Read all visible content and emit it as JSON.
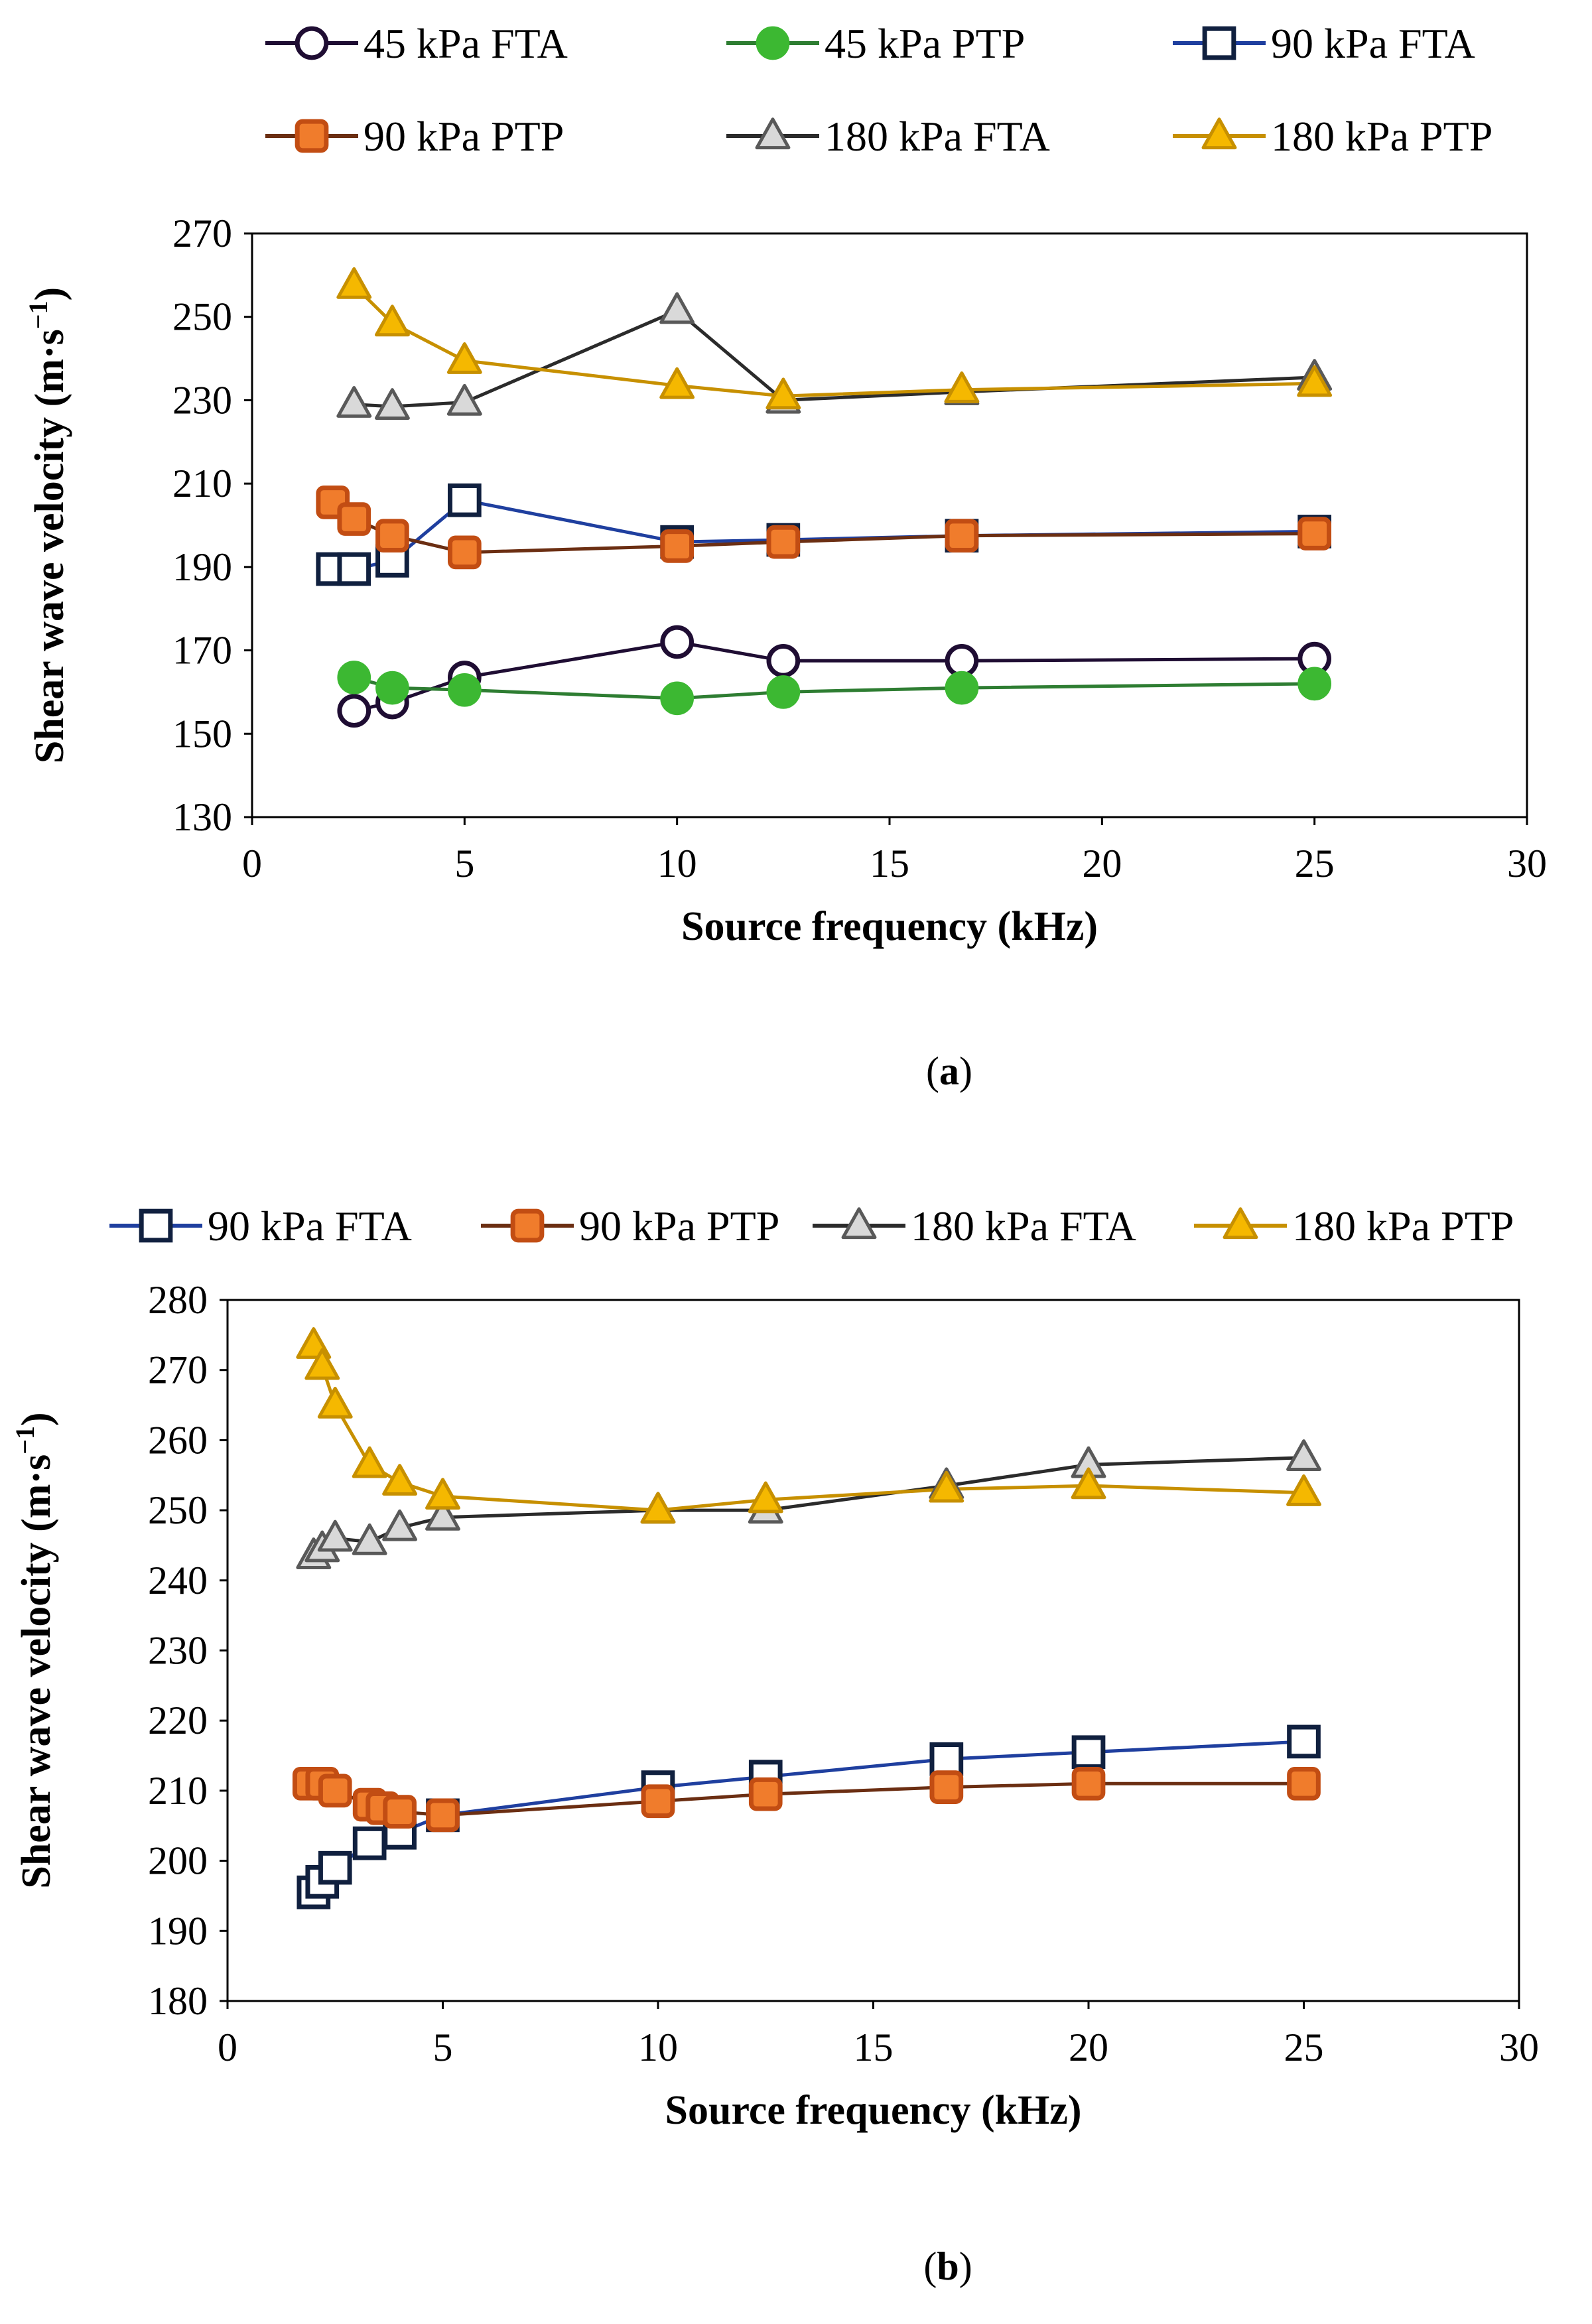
{
  "chart_data": [
    {
      "type": "line",
      "panel_label": "a",
      "xlabel": "Source frequency (kHz)",
      "ylabel": "Shear wave velocity (m·s",
      "ylabel_sup": "−1",
      "ylabel_close": ")",
      "xlim": [
        0,
        30
      ],
      "ylim": [
        130,
        270
      ],
      "xticks": [
        "0",
        "5",
        "10",
        "15",
        "20",
        "25",
        "30"
      ],
      "yticks": [
        "130",
        "150",
        "170",
        "190",
        "210",
        "230",
        "250",
        "270"
      ],
      "grid": false,
      "series": [
        {
          "name": "45 kPa FTA",
          "marker": "circle",
          "fill": "none",
          "markerStroke": "#1f0d33",
          "color": "#1f0d33",
          "x": [
            2.4,
            3.3,
            5,
            10,
            12.5,
            16.7,
            25
          ],
          "y": [
            155.5,
            157.5,
            163.5,
            172,
            167.5,
            167.5,
            168
          ]
        },
        {
          "name": "45 kPa PTP",
          "marker": "circle",
          "fill": "#3cb832",
          "markerStroke": "#3cb832",
          "color": "#2e7d32",
          "x": [
            2.4,
            3.3,
            5,
            10,
            12.5,
            16.7,
            25
          ],
          "y": [
            163.5,
            161,
            160.5,
            158.5,
            160,
            161,
            162
          ]
        },
        {
          "name": "90 kPa FTA",
          "marker": "square",
          "fill": "none",
          "markerStroke": "#10203f",
          "color": "#1f3f9f",
          "x": [
            1.9,
            2.4,
            3.3,
            5,
            10,
            12.5,
            16.7,
            25
          ],
          "y": [
            189.5,
            189.5,
            191.5,
            206,
            196,
            196.5,
            197.5,
            198.5
          ]
        },
        {
          "name": "90 kPa PTP",
          "marker": "square",
          "fill": "#f07c2c",
          "markerStroke": "#c24d13",
          "color": "#6b2e12",
          "x": [
            1.9,
            2.4,
            3.3,
            5,
            10,
            12.5,
            16.7,
            25
          ],
          "y": [
            205.5,
            201.5,
            197.5,
            193.5,
            195,
            196,
            197.5,
            198
          ]
        },
        {
          "name": "180 kPa FTA",
          "marker": "triangle",
          "fill": "#d9d9d9",
          "markerStroke": "#595959",
          "color": "#2b2b2b",
          "x": [
            2.4,
            3.3,
            5,
            10,
            12.5,
            16.7,
            25
          ],
          "y": [
            229,
            228.5,
            229.5,
            251.5,
            230,
            232,
            235.5
          ]
        },
        {
          "name": "180 kPa PTP",
          "marker": "triangle",
          "fill": "#f5b800",
          "markerStroke": "#c79000",
          "color": "#c79000",
          "x": [
            2.4,
            3.3,
            5,
            10,
            12.5,
            16.7,
            25
          ],
          "y": [
            257.5,
            248.5,
            239.5,
            233.5,
            231,
            232.5,
            234
          ]
        }
      ]
    },
    {
      "type": "line",
      "panel_label": "b",
      "xlabel": "Source frequency (kHz)",
      "ylabel": "Shear wave velocity (m·s",
      "ylabel_sup": "−1",
      "ylabel_close": ")",
      "xlim": [
        0,
        30
      ],
      "ylim": [
        180,
        280
      ],
      "xticks": [
        "0",
        "5",
        "10",
        "15",
        "20",
        "25",
        "30"
      ],
      "yticks": [
        "180",
        "190",
        "200",
        "210",
        "220",
        "230",
        "240",
        "250",
        "260",
        "270",
        "280"
      ],
      "grid": false,
      "series": [
        {
          "name": "90 kPa FTA",
          "marker": "square",
          "fill": "none",
          "markerStroke": "#10203f",
          "color": "#1f3f9f",
          "x": [
            2,
            2.2,
            2.5,
            3.3,
            4,
            5,
            10,
            12.5,
            16.7,
            20,
            25
          ],
          "y": [
            195.5,
            197,
            199,
            202.5,
            204,
            206.5,
            210.5,
            212,
            214.5,
            215.5,
            217
          ]
        },
        {
          "name": "90 kPa PTP",
          "marker": "square",
          "fill": "#f07c2c",
          "markerStroke": "#c24d13",
          "color": "#6b2e12",
          "x": [
            1.9,
            2.2,
            2.5,
            3.3,
            3.6,
            4,
            5,
            10,
            12.5,
            16.7,
            20,
            25
          ],
          "y": [
            211,
            211,
            210,
            208,
            207.5,
            207,
            206.5,
            208.5,
            209.5,
            210.5,
            211,
            211
          ]
        },
        {
          "name": "180 kPa FTA",
          "marker": "triangle",
          "fill": "#d9d9d9",
          "markerStroke": "#595959",
          "color": "#2b2b2b",
          "x": [
            2,
            2.2,
            2.5,
            3.3,
            4,
            5,
            10,
            12.5,
            16.7,
            20,
            25
          ],
          "y": [
            243.5,
            244.5,
            246,
            245.5,
            247.5,
            249,
            250,
            250,
            253.5,
            256.5,
            257.5
          ]
        },
        {
          "name": "180 kPa PTP",
          "marker": "triangle",
          "fill": "#f5b800",
          "markerStroke": "#c79000",
          "color": "#c79000",
          "x": [
            2,
            2.2,
            2.5,
            3.3,
            4,
            5,
            10,
            12.5,
            16.7,
            20,
            25
          ],
          "y": [
            273.5,
            270.5,
            265,
            256.5,
            254,
            252,
            250,
            251.5,
            253,
            253.5,
            252.5
          ]
        }
      ]
    }
  ]
}
